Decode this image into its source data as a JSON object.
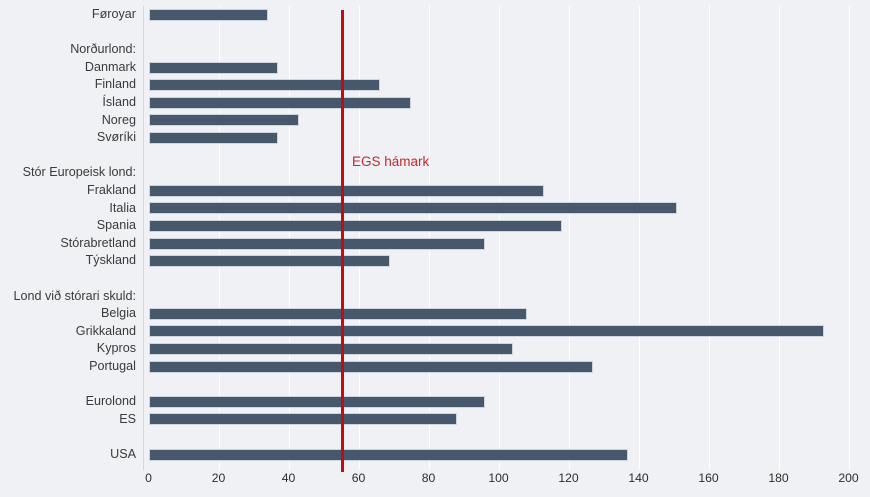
{
  "chart_data": {
    "type": "bar",
    "orientation": "horizontal",
    "title": "",
    "xlabel": "",
    "ylabel": "",
    "xlim": [
      0,
      200
    ],
    "xticks": [
      0,
      20,
      40,
      60,
      80,
      100,
      120,
      140,
      160,
      180,
      200
    ],
    "grid": "vertical-white-gridlines",
    "legend": "none",
    "reference_line": {
      "label": "EGS hámark",
      "value": 55
    },
    "rows": [
      {
        "kind": "bar",
        "label": "Føroyar",
        "value": 34
      },
      {
        "kind": "spacer",
        "label": ""
      },
      {
        "kind": "header",
        "label": "Norðurlond:"
      },
      {
        "kind": "bar",
        "label": "Danmark",
        "value": 37
      },
      {
        "kind": "bar",
        "label": "Finland",
        "value": 66
      },
      {
        "kind": "bar",
        "label": "Ísland",
        "value": 75
      },
      {
        "kind": "bar",
        "label": "Noreg",
        "value": 43
      },
      {
        "kind": "bar",
        "label": "Svøríki",
        "value": 37
      },
      {
        "kind": "spacer",
        "label": ""
      },
      {
        "kind": "header",
        "label": "Stór Europeisk lond:"
      },
      {
        "kind": "bar",
        "label": "Frakland",
        "value": 113
      },
      {
        "kind": "bar",
        "label": "Italia",
        "value": 151
      },
      {
        "kind": "bar",
        "label": "Spania",
        "value": 118
      },
      {
        "kind": "bar",
        "label": "Stórabretland",
        "value": 96
      },
      {
        "kind": "bar",
        "label": "Týskland",
        "value": 69
      },
      {
        "kind": "spacer",
        "label": ""
      },
      {
        "kind": "header",
        "label": "Lond við stórari skuld:"
      },
      {
        "kind": "bar",
        "label": "Belgia",
        "value": 108
      },
      {
        "kind": "bar",
        "label": "Grikkaland",
        "value": 193
      },
      {
        "kind": "bar",
        "label": "Kypros",
        "value": 104
      },
      {
        "kind": "bar",
        "label": "Portugal",
        "value": 127
      },
      {
        "kind": "spacer",
        "label": ""
      },
      {
        "kind": "bar",
        "label": "Eurolond",
        "value": 96
      },
      {
        "kind": "bar",
        "label": "ES",
        "value": 88
      },
      {
        "kind": "spacer",
        "label": ""
      },
      {
        "kind": "bar",
        "label": "USA",
        "value": 137
      }
    ]
  },
  "colors": {
    "background": "#f0f1f4",
    "bar": "#47586d",
    "bar_border": "#ced5de",
    "gridline": "#ffffff",
    "axis_spine": "#d3d7de",
    "label_text": "#3a3a3a",
    "tick_text": "#2d2d2d",
    "reference_line": "#bf0e11",
    "reference_label_text": "#c22a2a"
  }
}
